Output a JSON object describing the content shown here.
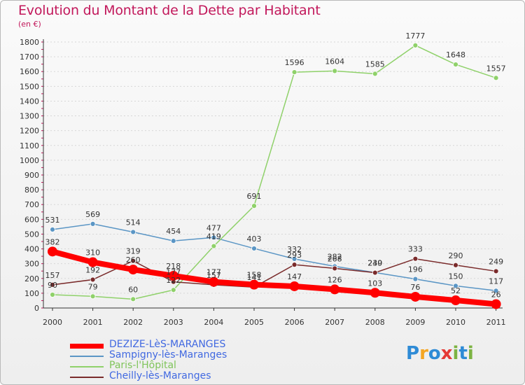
{
  "header": {
    "title": "Evolution du Montant de la Dette par Habitant",
    "unit": "(en €)"
  },
  "logo": {
    "text": "Proxiti",
    "colors": [
      "#2e8bd6",
      "#f5a623",
      "#2e8bd6",
      "#e53935",
      "#7cb342",
      "#2e8bd6",
      "#7cb342"
    ]
  },
  "colors": {
    "axis": "#333333",
    "grid": "#d7d7d7",
    "title": "#c2185b"
  },
  "chart_data": {
    "type": "line",
    "title": "Evolution du Montant de la Dette par Habitant",
    "xlabel": "",
    "ylabel": "(en €)",
    "ylim": [
      0,
      1800
    ],
    "yticks": [
      0,
      100,
      200,
      300,
      400,
      500,
      600,
      700,
      800,
      900,
      1000,
      1100,
      1200,
      1300,
      1400,
      1500,
      1600,
      1700,
      1800
    ],
    "grid": true,
    "legend": "bottom-left",
    "x": [
      "2000",
      "2001",
      "2002",
      "2003",
      "2004",
      "2005",
      "2006",
      "2007",
      "2008",
      "2009",
      "2010",
      "2011"
    ],
    "series": [
      {
        "name": "DEZIZE-LèS-MARANGES",
        "color": "#ff0000",
        "emphasis": true,
        "values": [
          382,
          310,
          260,
          218,
          177,
          158,
          147,
          126,
          103,
          76,
          52,
          26
        ]
      },
      {
        "name": "Sampigny-lès-Maranges",
        "color": "#5b96c5",
        "emphasis": false,
        "values": [
          531,
          569,
          514,
          454,
          477,
          403,
          332,
          282,
          240,
          196,
          150,
          117
        ]
      },
      {
        "name": "Paris-l'Hôpital",
        "color": "#8fd16a",
        "emphasis": false,
        "values": [
          90,
          79,
          60,
          122,
          419,
          691,
          1596,
          1604,
          1585,
          1777,
          1648,
          1557
        ]
      },
      {
        "name": "Cheilly-lès-Maranges",
        "color": "#7a2b2b",
        "emphasis": false,
        "values": [
          157,
          192,
          319,
          177,
          157,
          141,
          293,
          268,
          239,
          333,
          290,
          249
        ]
      }
    ]
  }
}
